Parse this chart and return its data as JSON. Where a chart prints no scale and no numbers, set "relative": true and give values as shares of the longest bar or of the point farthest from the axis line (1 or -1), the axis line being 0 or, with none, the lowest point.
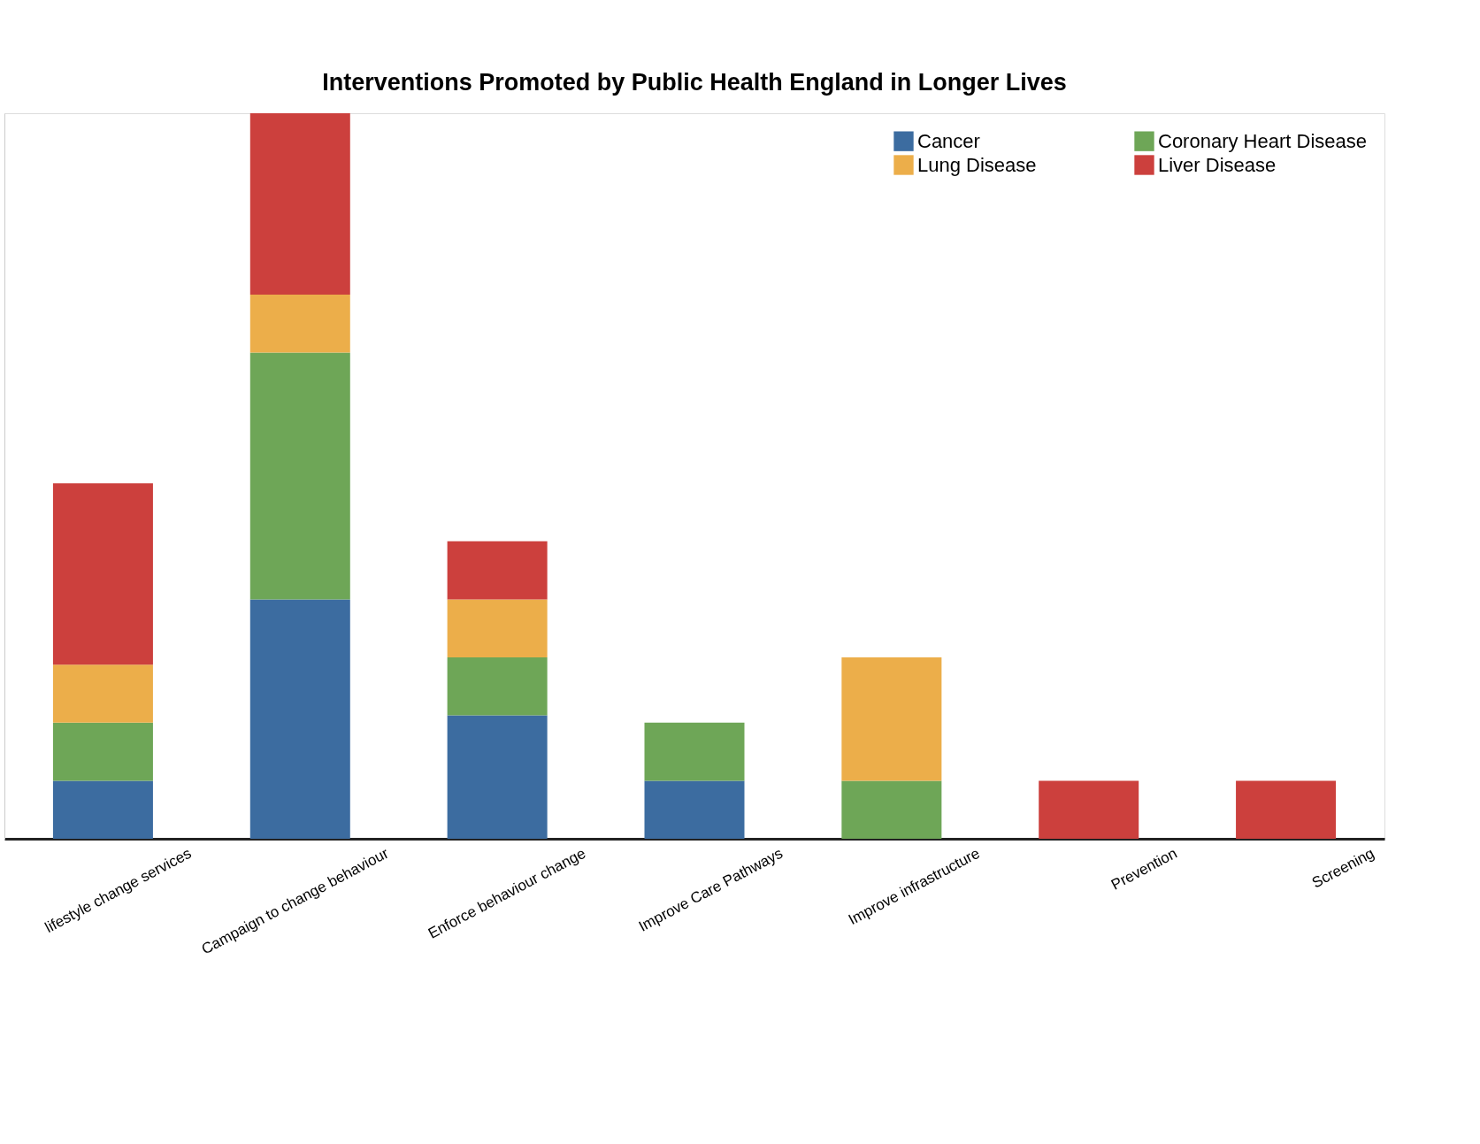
{
  "chart_data": {
    "type": "bar",
    "title": "Interventions Promoted by Public Health England in Longer Lives",
    "categories": [
      "lifestyle change services",
      "Campaign to change behaviour",
      "Enforce  behaviour change",
      "Improve Care Pathways",
      "Improve infrastructure",
      "Prevention",
      "Screening"
    ],
    "series": [
      {
        "name": "Cancer",
        "color": "#3c6ca0",
        "values": [
          0.08,
          0.33,
          0.17,
          0.08,
          null,
          null,
          null
        ]
      },
      {
        "name": "Coronary Heart Disease",
        "color": "#6ea657",
        "values": [
          0.08,
          0.34,
          0.08,
          0.08,
          0.08,
          null,
          null
        ]
      },
      {
        "name": "Lung Disease",
        "color": "#ecae4a",
        "values": [
          0.08,
          0.08,
          0.08,
          null,
          0.17,
          null,
          null
        ]
      },
      {
        "name": "Liver Disease",
        "color": "#cc403d",
        "values": [
          0.25,
          0.25,
          0.08,
          null,
          null,
          0.08,
          0.08
        ]
      }
    ],
    "stacked": true,
    "relative": true,
    "legend": "top right"
  }
}
